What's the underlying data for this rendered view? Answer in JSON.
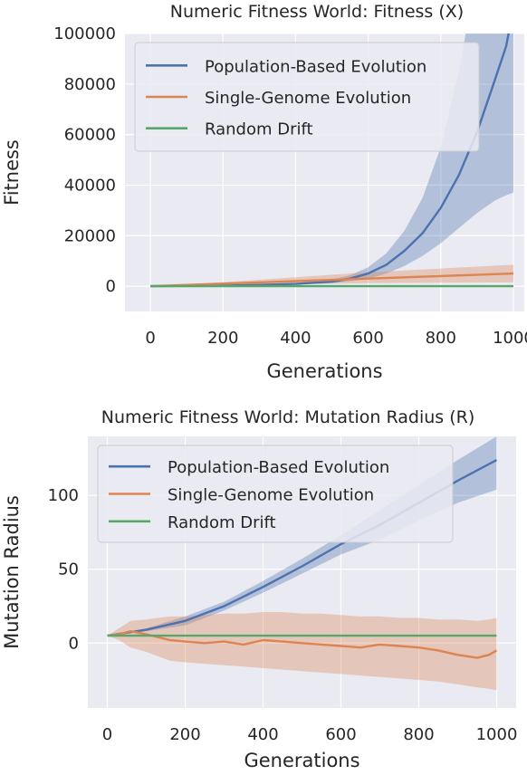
{
  "colors": {
    "background": "#eaeaf2",
    "grid": "#ffffff",
    "legend_bg": "#eaeaf2",
    "legend_border": "#cccccc",
    "pop": "#4c72b0",
    "single": "#dd8452",
    "drift": "#55a868"
  },
  "chart_data": [
    {
      "type": "line",
      "title": "Numeric Fitness World: Fitness (X)",
      "xlabel": "Generations",
      "ylabel": "Fitness",
      "xlim": [
        -70,
        1030
      ],
      "ylim": [
        -10000,
        100000
      ],
      "xticks": [
        0,
        200,
        400,
        600,
        800,
        1000
      ],
      "yticks": [
        0,
        20000,
        40000,
        60000,
        80000,
        100000
      ],
      "xtick_labels": [
        "0",
        "200",
        "400",
        "600",
        "800",
        "1000"
      ],
      "ytick_labels": [
        "0",
        "20000",
        "40000",
        "60000",
        "80000",
        "100000"
      ],
      "grid": true,
      "legend_position": "top-left",
      "series": [
        {
          "name": "Population-Based Evolution",
          "color_key": "pop",
          "x": [
            0,
            100,
            200,
            300,
            400,
            500,
            550,
            600,
            650,
            700,
            750,
            800,
            850,
            900,
            950,
            980,
            1000
          ],
          "y": [
            0,
            100,
            250,
            500,
            900,
            1800,
            3000,
            5000,
            8500,
            14000,
            21000,
            31000,
            44000,
            61000,
            82000,
            95000,
            110000
          ],
          "lower": [
            0,
            80,
            180,
            350,
            600,
            1200,
            2000,
            3000,
            5000,
            8000,
            12000,
            17000,
            23000,
            29000,
            34000,
            36000,
            37000
          ],
          "upper": [
            0,
            130,
            320,
            700,
            1300,
            2600,
            4300,
            7500,
            13000,
            22000,
            35000,
            55000,
            85000,
            125000,
            180000,
            220000,
            250000
          ]
        },
        {
          "name": "Single-Genome Evolution",
          "color_key": "single",
          "x": [
            0,
            200,
            400,
            600,
            800,
            1000
          ],
          "y": [
            0,
            1000,
            2000,
            3000,
            4000,
            5000
          ],
          "lower": [
            0,
            500,
            800,
            1200,
            1400,
            1500
          ],
          "upper": [
            0,
            1600,
            3500,
            5500,
            7000,
            8500
          ]
        },
        {
          "name": "Random Drift",
          "color_key": "drift",
          "x": [
            0,
            1000
          ],
          "y": [
            0,
            0
          ],
          "lower": [
            0,
            0
          ],
          "upper": [
            0,
            0
          ]
        }
      ]
    },
    {
      "type": "line",
      "title": "Numeric Fitness World: Mutation Radius (R)",
      "xlabel": "Generations",
      "ylabel": "Mutation Radius",
      "xlim": [
        -50,
        1050
      ],
      "ylim": [
        -44,
        140
      ],
      "xticks": [
        0,
        200,
        400,
        600,
        800,
        1000
      ],
      "yticks": [
        0,
        50,
        100
      ],
      "xtick_labels": [
        "0",
        "200",
        "400",
        "600",
        "800",
        "1000"
      ],
      "ytick_labels": [
        "0",
        "50",
        "100"
      ],
      "grid": true,
      "legend_position": "top-left",
      "series": [
        {
          "name": "Population-Based Evolution",
          "color_key": "pop",
          "x": [
            0,
            100,
            200,
            300,
            400,
            500,
            600,
            700,
            800,
            900,
            1000
          ],
          "y": [
            5,
            9,
            15,
            25,
            38,
            52,
            67,
            80,
            95,
            110,
            124
          ],
          "lower": [
            5,
            8,
            12,
            22,
            34,
            47,
            60,
            70,
            83,
            95,
            104
          ],
          "upper": [
            5,
            10,
            18,
            28,
            42,
            57,
            73,
            90,
            107,
            124,
            140
          ]
        },
        {
          "name": "Single-Genome Evolution",
          "color_key": "single",
          "x": [
            0,
            30,
            60,
            100,
            130,
            160,
            200,
            250,
            300,
            350,
            400,
            450,
            500,
            550,
            600,
            650,
            700,
            750,
            800,
            850,
            900,
            950,
            980,
            1000
          ],
          "y": [
            5,
            6,
            8,
            6,
            4,
            2,
            1,
            0,
            1,
            -1,
            2,
            1,
            0,
            -1,
            -2,
            -3,
            -1,
            -2,
            -3,
            -5,
            -8,
            -10,
            -8,
            -5
          ],
          "lower": [
            5,
            2,
            -3,
            -6,
            -9,
            -12,
            -13,
            -14,
            -15,
            -16,
            -17,
            -18,
            -19,
            -20,
            -21,
            -22,
            -23,
            -24,
            -25,
            -26,
            -28,
            -30,
            -31,
            -32
          ],
          "upper": [
            5,
            10,
            15,
            16,
            17,
            18,
            18,
            19,
            20,
            20,
            21,
            21,
            20,
            20,
            19,
            18,
            18,
            17,
            17,
            16,
            16,
            15,
            16,
            17
          ]
        },
        {
          "name": "Random Drift",
          "color_key": "drift",
          "x": [
            0,
            1000
          ],
          "y": [
            5,
            5
          ],
          "lower": [
            5,
            5
          ],
          "upper": [
            5,
            5
          ]
        }
      ]
    }
  ]
}
